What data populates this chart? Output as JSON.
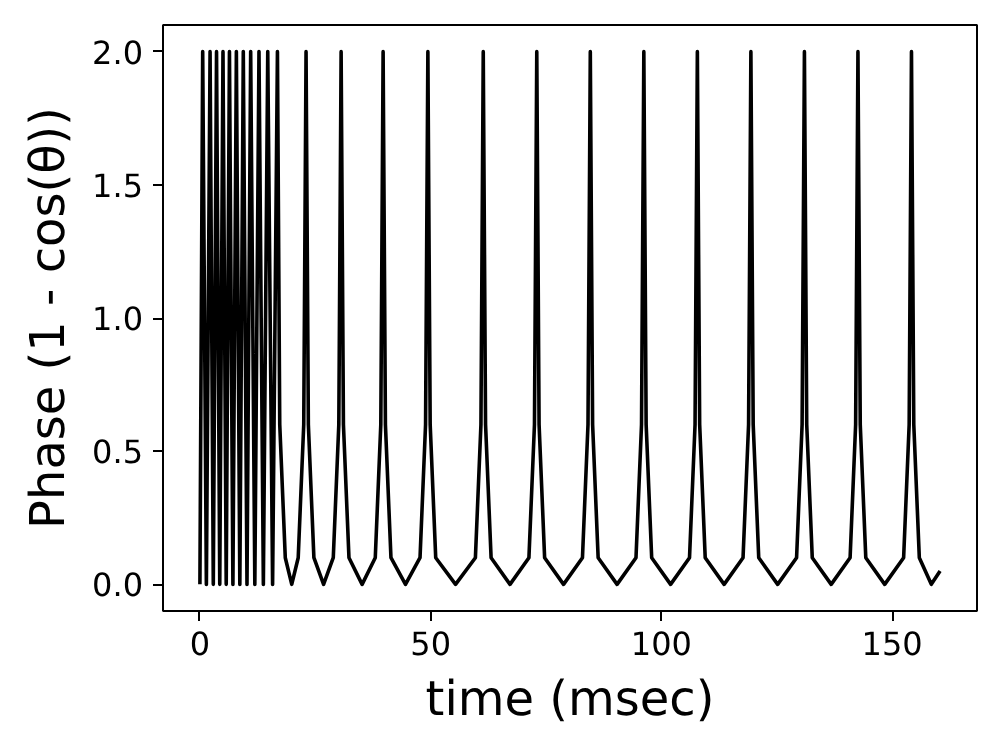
{
  "chart_data": {
    "type": "line",
    "xlabel": "time (msec)",
    "ylabel": "Phase (1 - cos(θ))",
    "x": [
      0,
      0.6,
      1.4,
      2.2,
      2.9,
      3.6,
      4.3,
      5.0,
      5.7,
      6.4,
      7.15,
      7.9,
      8.65,
      9.4,
      10.2,
      11.0,
      11.9,
      12.8,
      13.75,
      14.7,
      15.75,
      16.8,
      17.3,
      18.5,
      19.9,
      21.3,
      22.5,
      23.0,
      23.5,
      24.7,
      26.8,
      28.9,
      30.1,
      30.6,
      31.1,
      32.3,
      35.15,
      38.0,
      39.2,
      39.7,
      40.2,
      41.4,
      44.55,
      47.7,
      48.9,
      49.4,
      49.9,
      51.1,
      55.4,
      59.7,
      60.9,
      61.4,
      61.9,
      63.1,
      67.2,
      71.3,
      72.5,
      73.0,
      73.5,
      74.7,
      78.8,
      82.9,
      84.1,
      84.6,
      85.1,
      86.3,
      90.4,
      94.5,
      95.7,
      96.2,
      96.7,
      97.9,
      102.0,
      106.1,
      107.3,
      107.8,
      108.3,
      109.5,
      113.6,
      117.7,
      118.9,
      119.4,
      119.9,
      121.1,
      125.2,
      129.3,
      130.5,
      131.0,
      131.5,
      132.7,
      136.8,
      140.9,
      142.1,
      142.6,
      143.1,
      144.3,
      148.4,
      152.5,
      153.7,
      154.2,
      154.7,
      155.9,
      158.5,
      160.4
    ],
    "series": [
      {
        "color": "#000000",
        "values": [
          0,
          2,
          0,
          2,
          0,
          2,
          0,
          2,
          0,
          2,
          0,
          2,
          0,
          2,
          0,
          2,
          0,
          2,
          0,
          2,
          0,
          2,
          0.6,
          0.1,
          0,
          0.1,
          0.6,
          2,
          0.6,
          0.1,
          0,
          0.1,
          0.6,
          2,
          0.6,
          0.1,
          0,
          0.1,
          0.6,
          2,
          0.6,
          0.1,
          0,
          0.1,
          0.6,
          2,
          0.6,
          0.1,
          0,
          0.1,
          0.6,
          2,
          0.6,
          0.1,
          0,
          0.1,
          0.6,
          2,
          0.6,
          0.1,
          0,
          0.1,
          0.6,
          2,
          0.6,
          0.1,
          0,
          0.1,
          0.6,
          2,
          0.6,
          0.1,
          0,
          0.1,
          0.6,
          2,
          0.6,
          0.1,
          0,
          0.1,
          0.6,
          2,
          0.6,
          0.1,
          0,
          0.1,
          0.6,
          2,
          0.6,
          0.1,
          0,
          0.1,
          0.6,
          2,
          0.6,
          0.1,
          0,
          0.1,
          0.6,
          2,
          0.6,
          0.1,
          0,
          0.05
        ]
      }
    ],
    "xlim": [
      -8.0,
      168.4
    ],
    "xticks": [
      0,
      50,
      100,
      150
    ],
    "ylim": [
      -0.1,
      2.1
    ],
    "yticks": [
      {
        "value": 0,
        "label": "0.0"
      },
      {
        "value": 0.5,
        "label": "0.5"
      },
      {
        "value": 1,
        "label": "1.0"
      },
      {
        "value": 1.5,
        "label": "1.5"
      },
      {
        "value": 2,
        "label": "2.0"
      }
    ],
    "grid": false,
    "line_style": "solid",
    "marker": "none"
  }
}
